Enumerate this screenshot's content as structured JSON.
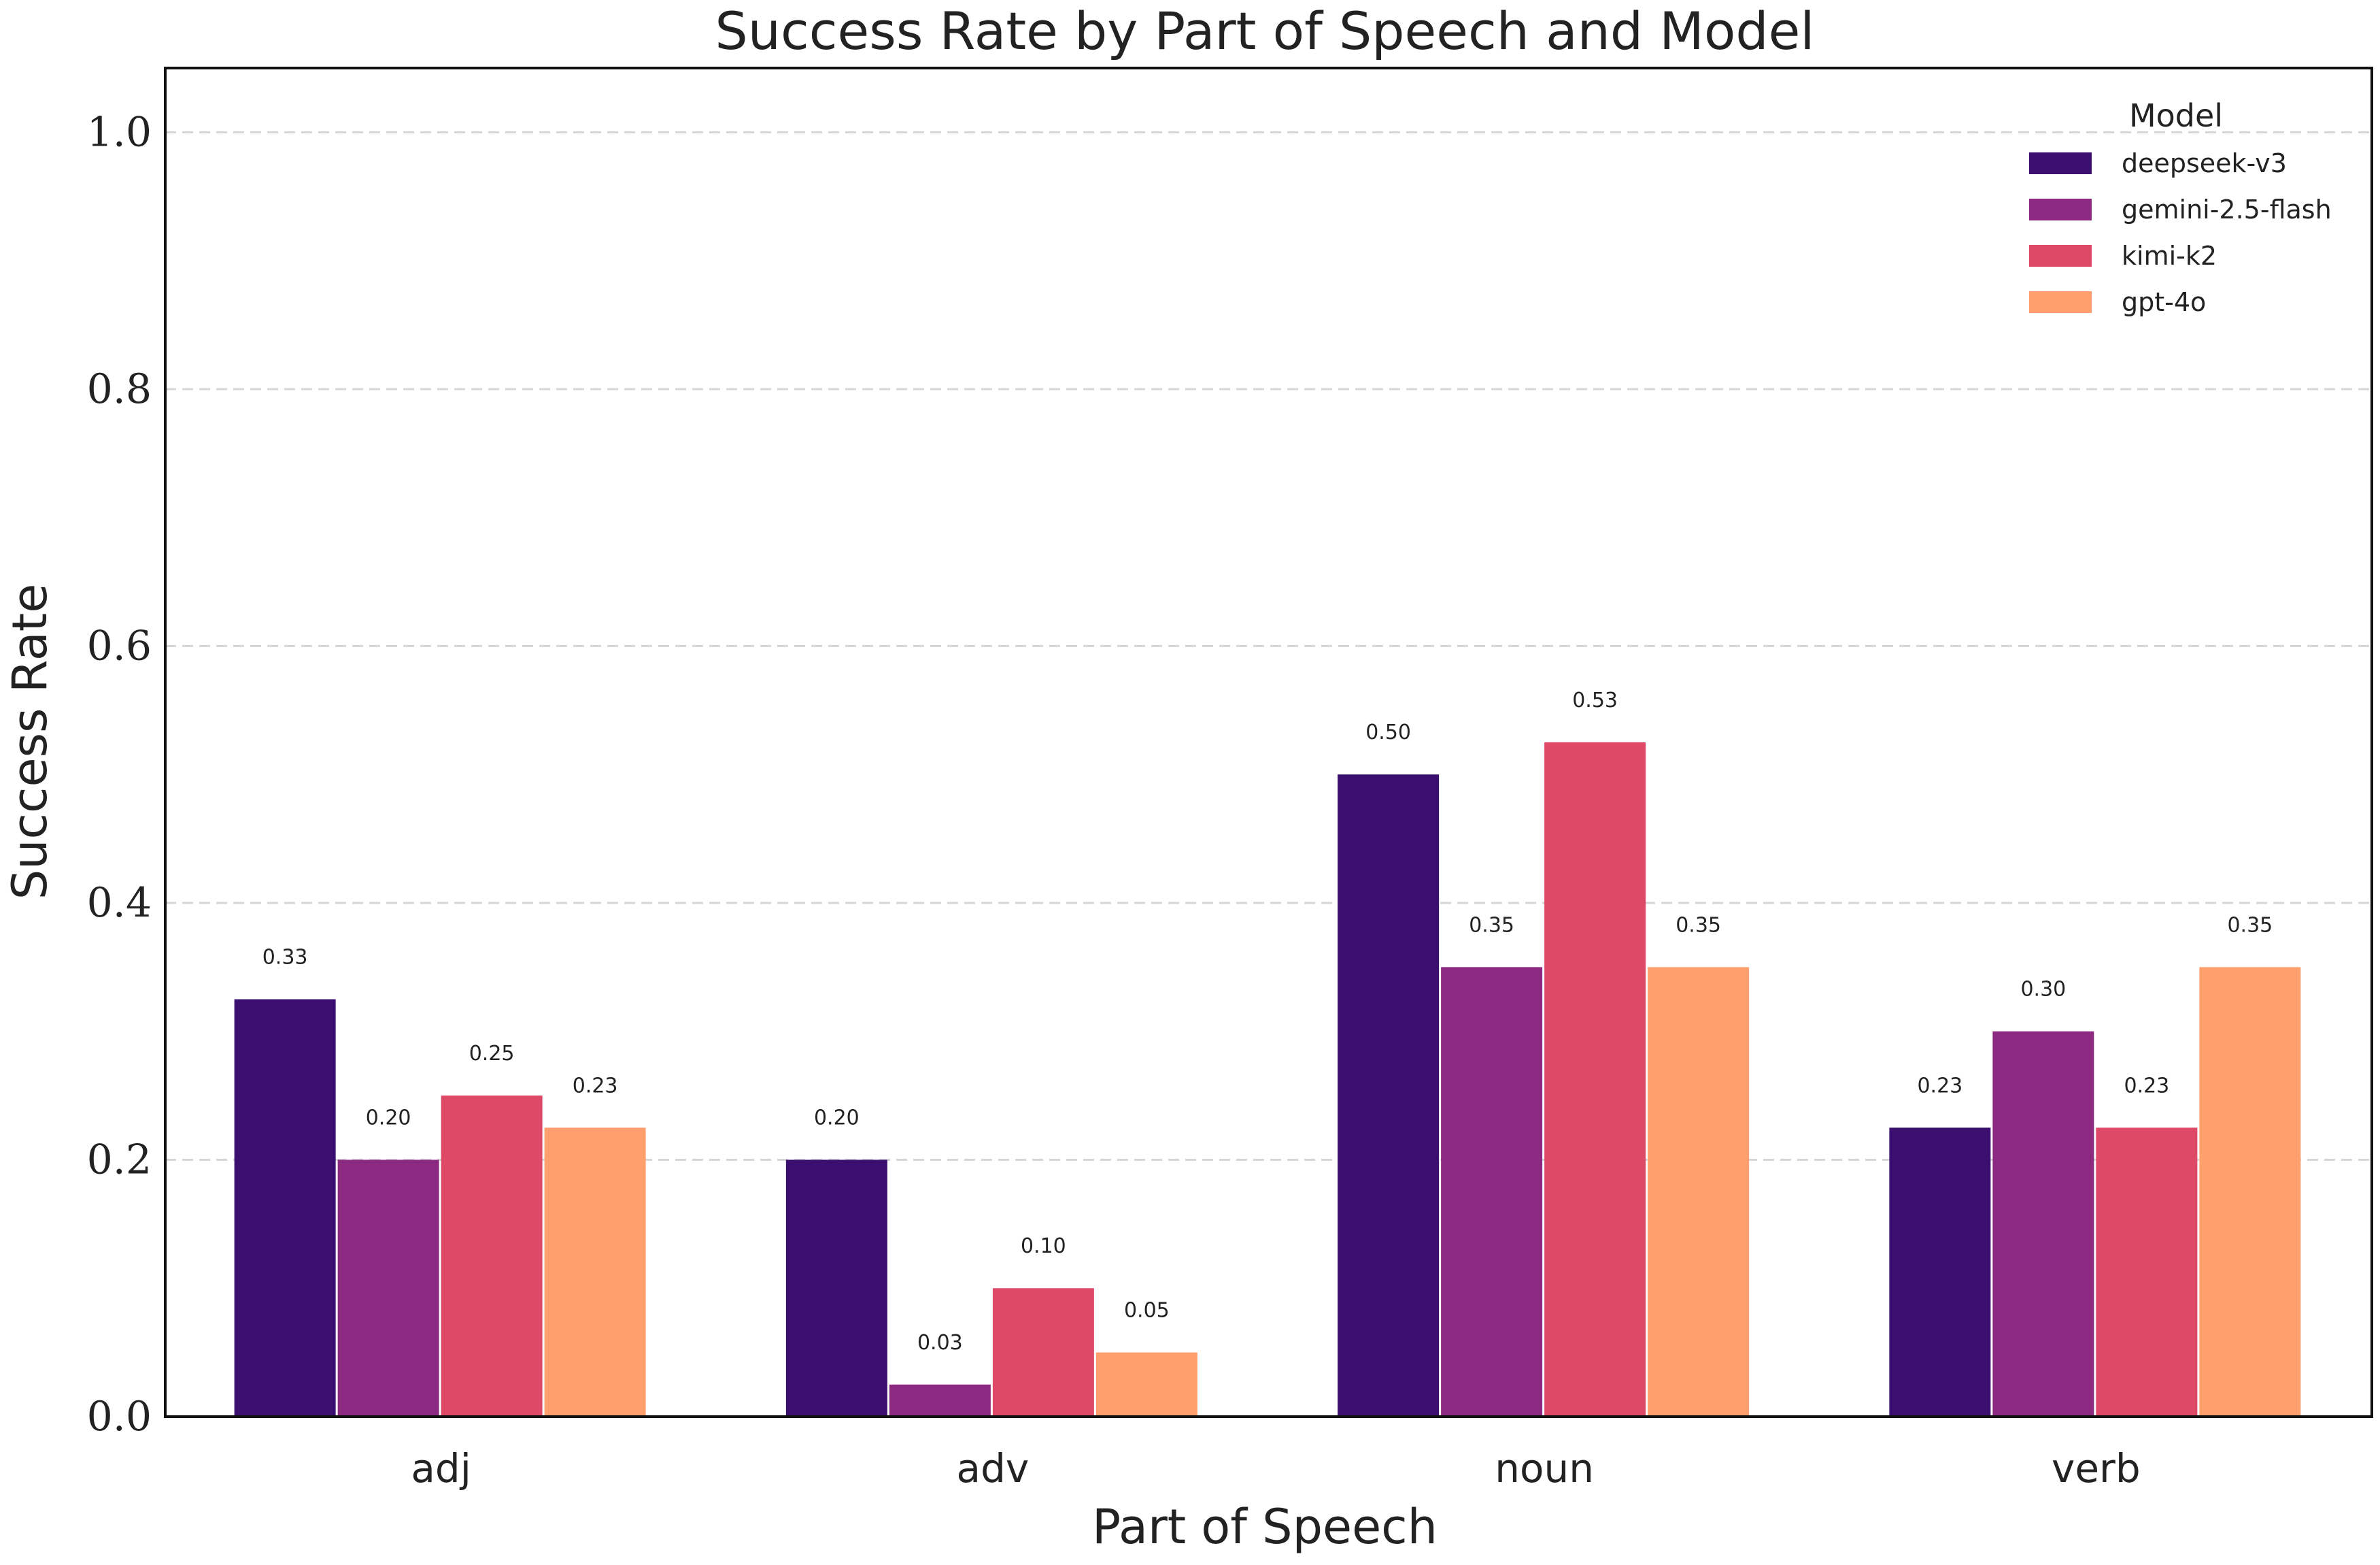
{
  "chart_data": {
    "type": "bar",
    "title": "Success Rate by Part of Speech and Model",
    "xlabel": "Part of Speech",
    "ylabel": "Success Rate",
    "categories": [
      "adj",
      "adv",
      "noun",
      "verb"
    ],
    "ylim": [
      0,
      1.05
    ],
    "yticks": [
      "0.0",
      "0.2",
      "0.4",
      "0.6",
      "0.8",
      "1.0"
    ],
    "ytick_values": [
      0,
      0.2,
      0.4,
      0.6,
      0.8,
      1.0
    ],
    "grid": "horizontal dashed",
    "legend": {
      "title": "Model",
      "placement": "top-right"
    },
    "series": [
      {
        "name": "deepseek-v3",
        "color": "#3b0f70",
        "values": [
          0.325,
          0.2,
          0.5,
          0.225
        ],
        "labels": [
          "0.33",
          "0.20",
          "0.50",
          "0.23"
        ]
      },
      {
        "name": "gemini-2.5-flash",
        "color": "#8c2981",
        "values": [
          0.2,
          0.025,
          0.35,
          0.3
        ],
        "labels": [
          "0.20",
          "0.03",
          "0.35",
          "0.30"
        ]
      },
      {
        "name": "kimi-k2",
        "color": "#de4968",
        "values": [
          0.25,
          0.1,
          0.525,
          0.225
        ],
        "labels": [
          "0.25",
          "0.10",
          "0.53",
          "0.23"
        ]
      },
      {
        "name": "gpt-4o",
        "color": "#fe9f6d",
        "values": [
          0.225,
          0.05,
          0.35,
          0.35
        ],
        "labels": [
          "0.23",
          "0.05",
          "0.35",
          "0.35"
        ]
      }
    ]
  }
}
